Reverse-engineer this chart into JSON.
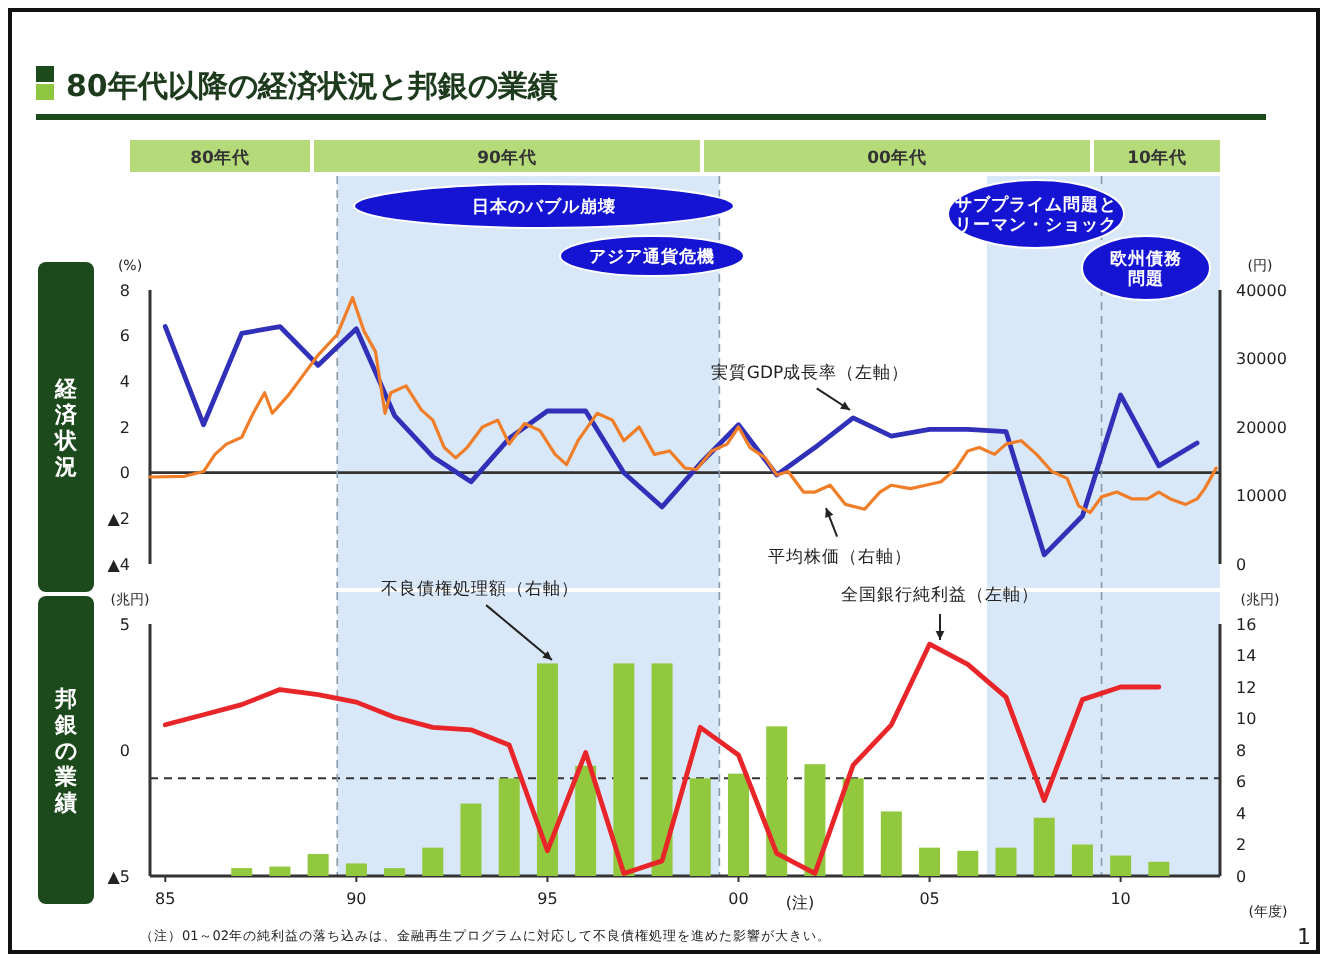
{
  "chart_data": [
    {
      "type": "line",
      "title": "80年代以降の経済状況と邦銀の業績",
      "subtitle": "経済状況",
      "ylabel": "(%)",
      "y2label": "(円)",
      "annotations": [
        "80年代",
        "90年代",
        "00年代",
        "10年代",
        "日本のバブル崩壊",
        "アジア通貨危機",
        "サブプライム問題とリーマン・ショック",
        "欧州債務問題"
      ],
      "xlim": [
        1984.6,
        2012.6
      ],
      "ylim": [
        -4,
        8
      ],
      "yticks": [
        8,
        6,
        4,
        2,
        0,
        {
          "value": -2,
          "label": "▲2"
        },
        {
          "value": -4,
          "label": "▲4"
        }
      ],
      "y2lim": [
        0,
        40000
      ],
      "y2ticks": [
        0,
        10000,
        20000,
        30000,
        40000
      ],
      "tick_labels": "y",
      "bands": [
        {
          "axis": "x",
          "from": 1989.5,
          "to": 1999.5,
          "color": "#d9e8f8"
        },
        {
          "axis": "x",
          "from": 2006.5,
          "to": 2012.6,
          "color": "#d9e8f8"
        }
      ],
      "ref_lines": [
        {
          "axis": "y",
          "value": 0,
          "color": "#333333",
          "line_style": "solid"
        },
        {
          "axis": "x",
          "value": 1989.5,
          "color": "#8899aa",
          "line_style": "dashed"
        },
        {
          "axis": "x",
          "value": 1999.5,
          "color": "#8899aa",
          "line_style": "dashed"
        },
        {
          "axis": "x",
          "value": 2009.5,
          "color": "#8899aa",
          "line_style": "dashed"
        }
      ],
      "series": [
        {
          "name": "実質GDP成長率（左軸）",
          "axis": "y",
          "color": "#3030b8",
          "x": [
            1985,
            1986,
            1987,
            1988,
            1989,
            1990,
            1991,
            1992,
            1993,
            1994,
            1995,
            1996,
            1997,
            1998,
            1999,
            2000,
            2001,
            2002,
            2003,
            2004,
            2005,
            2006,
            2007,
            2008,
            2009,
            2010,
            2011,
            2012
          ],
          "values": [
            6.4,
            2.1,
            6.1,
            6.4,
            4.7,
            6.3,
            2.5,
            0.7,
            -0.4,
            1.5,
            2.7,
            2.7,
            0.0,
            -1.5,
            0.4,
            2.1,
            -0.1,
            1.1,
            2.4,
            1.6,
            1.9,
            1.9,
            1.8,
            -3.6,
            -1.9,
            3.4,
            0.3,
            1.3
          ]
        },
        {
          "name": "平均株価（右軸）",
          "axis": "y2",
          "color": "#f07d28",
          "x": [
            1984.6,
            1985.5,
            1986.0,
            1986.3,
            1986.6,
            1987.0,
            1987.3,
            1987.6,
            1987.8,
            1988.2,
            1988.6,
            1989.0,
            1989.5,
            1989.9,
            1990.2,
            1990.5,
            1990.75,
            1990.9,
            1991.3,
            1991.7,
            1992.0,
            1992.3,
            1992.6,
            1992.9,
            1993.3,
            1993.7,
            1994.0,
            1994.4,
            1994.8,
            1995.2,
            1995.5,
            1995.8,
            1996.3,
            1996.7,
            1997.0,
            1997.4,
            1997.8,
            1998.2,
            1998.6,
            1998.9,
            1999.3,
            1999.7,
            2000.0,
            2000.3,
            2000.7,
            2001.0,
            2001.3,
            2001.7,
            2002.0,
            2002.4,
            2002.8,
            2003.3,
            2003.7,
            2004.0,
            2004.5,
            2004.9,
            2005.3,
            2005.7,
            2006.0,
            2006.3,
            2006.7,
            2007.0,
            2007.4,
            2007.8,
            2008.2,
            2008.6,
            2008.9,
            2009.2,
            2009.5,
            2009.9,
            2010.3,
            2010.7,
            2011.0,
            2011.3,
            2011.7,
            2012.0,
            2012.2,
            2012.5
          ],
          "values": [
            12700,
            12800,
            13500,
            16000,
            17500,
            18500,
            22000,
            25000,
            22000,
            24500,
            27500,
            30500,
            33500,
            38900,
            34000,
            31000,
            22000,
            25000,
            26000,
            22500,
            21000,
            17000,
            15500,
            17000,
            20000,
            21000,
            17500,
            20500,
            19500,
            16000,
            14500,
            18000,
            22000,
            21000,
            18000,
            20000,
            16000,
            16500,
            14000,
            13800,
            16500,
            17500,
            20000,
            17000,
            15500,
            13000,
            13500,
            10500,
            10500,
            11500,
            8700,
            8000,
            10500,
            11500,
            11000,
            11500,
            12000,
            14000,
            16500,
            17000,
            16000,
            17500,
            18000,
            16000,
            13500,
            12500,
            8500,
            7500,
            9800,
            10500,
            9500,
            9500,
            10500,
            9500,
            8700,
            9500,
            11000,
            14000
          ]
        }
      ]
    },
    {
      "type": "bar",
      "subtitle": "邦銀の業績",
      "ylabel": "(兆円)",
      "y2label": "(兆円)",
      "xlabel": "(年度)",
      "annotations": [
        "(注)",
        "（注）01～02年の純利益の落ち込みは、金融再生プログラムに対応して不良債権処理を進めた影響が大きい。",
        "1"
      ],
      "xlim": [
        1984.6,
        2012.6
      ],
      "xticks": [
        {
          "value": 1985,
          "label": "85"
        },
        {
          "value": 1990,
          "label": "90"
        },
        {
          "value": 1995,
          "label": "95"
        },
        {
          "value": 2000,
          "label": "00"
        },
        {
          "value": 2005,
          "label": "05"
        },
        {
          "value": 2010,
          "label": "10"
        }
      ],
      "ylim": [
        -5,
        5
      ],
      "yticks": [
        5,
        0,
        {
          "value": -5,
          "label": "▲5"
        }
      ],
      "y2lim": [
        0,
        16
      ],
      "y2ticks": [
        0,
        2,
        4,
        6,
        8,
        10,
        12,
        14,
        16
      ],
      "bands": [
        {
          "axis": "x",
          "from": 1989.5,
          "to": 1999.5,
          "color": "#d9e8f8"
        },
        {
          "axis": "x",
          "from": 2006.5,
          "to": 2012.6,
          "color": "#d9e8f8"
        }
      ],
      "ref_lines": [
        {
          "axis": "y2",
          "value": 6.2,
          "color": "#333333",
          "line_style": "dashed"
        },
        {
          "axis": "x",
          "value": 1989.5,
          "color": "#8899aa",
          "line_style": "dashed"
        },
        {
          "axis": "x",
          "value": 1999.5,
          "color": "#8899aa",
          "line_style": "dashed"
        },
        {
          "axis": "x",
          "value": 2009.5,
          "color": "#8899aa",
          "line_style": "dashed"
        }
      ],
      "series": [
        {
          "name": "不良債権処理額（右軸）",
          "axis": "y2",
          "color": "#92c83e",
          "x": [
            1987,
            1988,
            1989,
            1990,
            1991,
            1992,
            1993,
            1994,
            1995,
            1996,
            1997,
            1998,
            1999,
            2000,
            2001,
            2002,
            2003,
            2004,
            2005,
            2006,
            2007,
            2008,
            2009,
            2010,
            2011
          ],
          "values": [
            0.5,
            0.6,
            1.4,
            0.8,
            0.5,
            1.8,
            4.6,
            6.2,
            13.5,
            7.0,
            13.5,
            13.5,
            6.2,
            6.5,
            9.5,
            7.1,
            6.2,
            4.1,
            1.8,
            1.6,
            1.8,
            3.7,
            2.0,
            1.3,
            0.9
          ]
        },
        {
          "name": "全国銀行純利益（左軸）",
          "type": "line",
          "axis": "y",
          "color": "#e8262a",
          "x": [
            1985,
            1986,
            1987,
            1988,
            1989,
            1990,
            1991,
            1992,
            1993,
            1994,
            1995,
            1996,
            1997,
            1998,
            1999,
            2000,
            2001,
            2002,
            2003,
            2004,
            2005,
            2006,
            2007,
            2008,
            2009,
            2010,
            2011
          ],
          "values": [
            1.0,
            1.4,
            1.8,
            2.4,
            2.2,
            1.9,
            1.3,
            0.9,
            0.8,
            0.2,
            -4.0,
            -0.1,
            -4.9,
            -4.4,
            0.9,
            -0.2,
            -4.1,
            -4.9,
            -0.6,
            1.0,
            4.2,
            3.4,
            2.1,
            -2.0,
            2.0,
            2.5,
            2.5
          ]
        }
      ]
    }
  ]
}
